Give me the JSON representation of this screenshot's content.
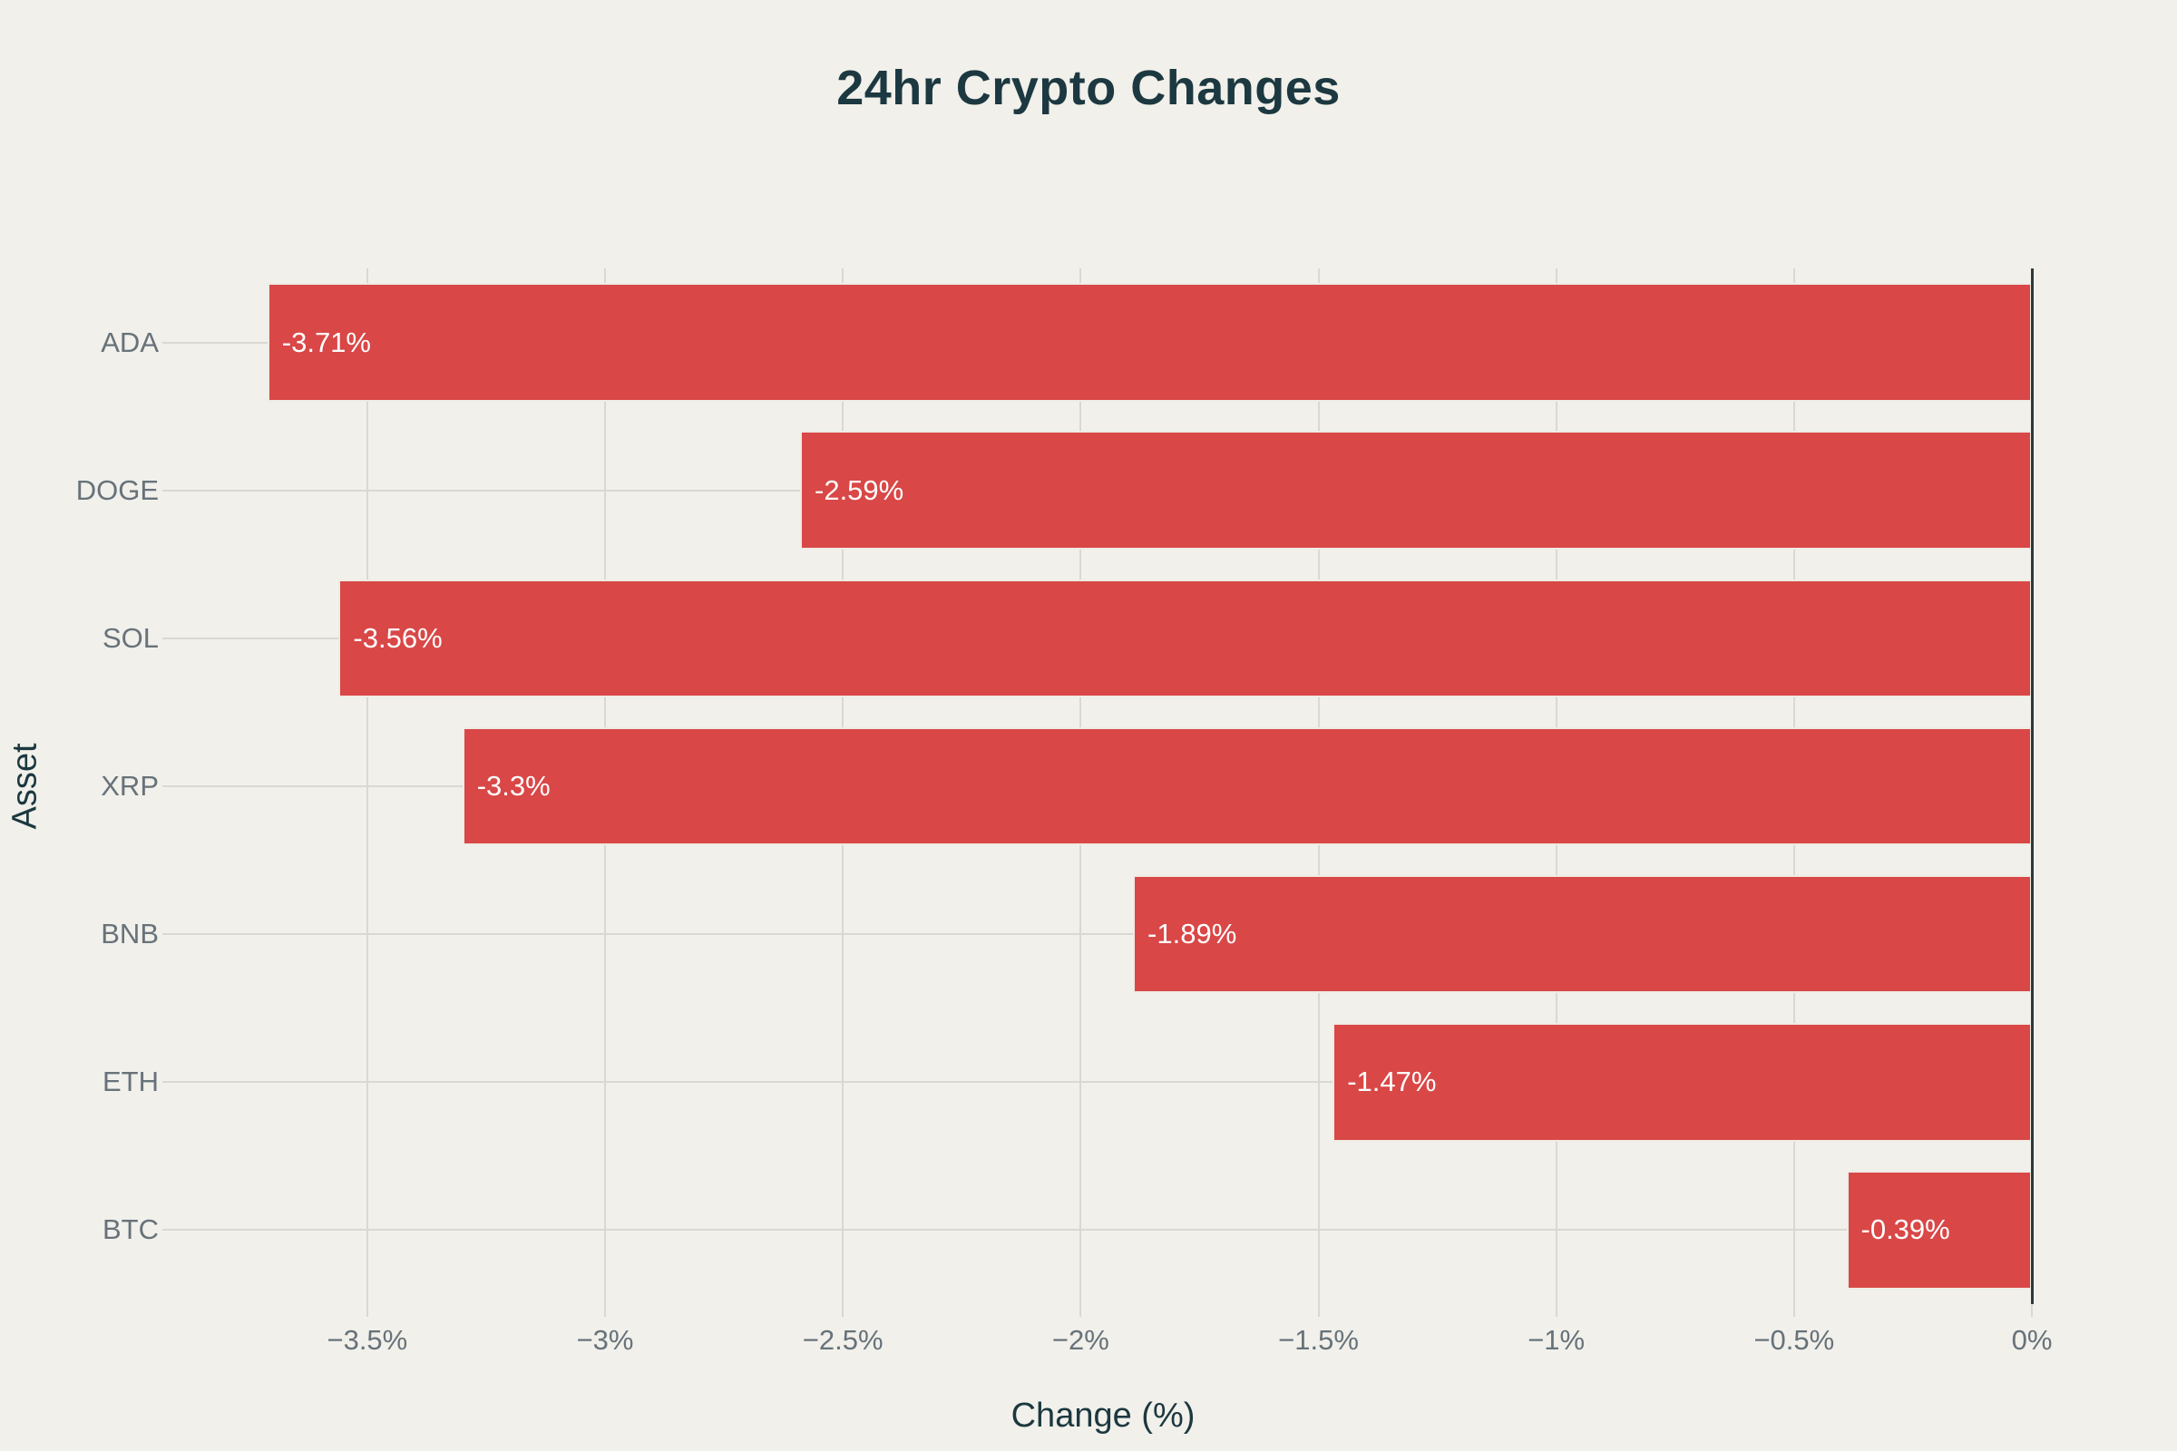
{
  "chart_data": {
    "type": "bar",
    "orientation": "horizontal",
    "title": "24hr Crypto Changes",
    "xlabel": "Change (%)",
    "ylabel": "Asset",
    "categories": [
      "ADA",
      "DOGE",
      "SOL",
      "XRP",
      "BNB",
      "ETH",
      "BTC"
    ],
    "values": [
      -3.71,
      -2.59,
      -3.56,
      -3.3,
      -1.89,
      -1.47,
      -0.39
    ],
    "bar_labels": [
      "-3.71%",
      "-2.59%",
      "-3.56%",
      "-3.3%",
      "-1.89%",
      "-1.47%",
      "-0.39%"
    ],
    "xlim": [
      -3.906,
      0
    ],
    "x_ticks": [
      {
        "value": -3.5,
        "label": "−3.5%"
      },
      {
        "value": -3.0,
        "label": "−3%"
      },
      {
        "value": -2.5,
        "label": "−2.5%"
      },
      {
        "value": -2.0,
        "label": "−2%"
      },
      {
        "value": -1.5,
        "label": "−1.5%"
      },
      {
        "value": -1.0,
        "label": "−1%"
      },
      {
        "value": -0.5,
        "label": "−0.5%"
      },
      {
        "value": 0,
        "label": "0%"
      }
    ],
    "grid": true,
    "legend_position": "none",
    "style": {
      "background": "#f1f0ea",
      "bar_color": "#d94747",
      "bar_border_color": "#eeece4",
      "bar_label_color": "#ffffff",
      "grid_color": "#d9d8d1",
      "zero_line_color": "#2e3a3a",
      "title_color": "#1c3840",
      "axis_title_color": "#1c3840",
      "tick_label_color": "#67727a"
    }
  }
}
